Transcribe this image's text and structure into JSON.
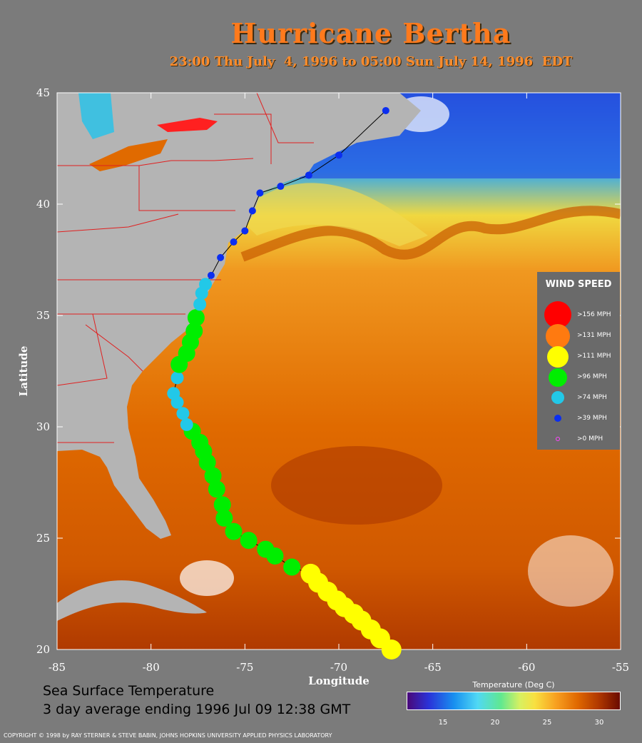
{
  "title": "Hurricane Bertha",
  "subtitle": "23:00 Thu July  4, 1996 to 05:00 Sun July 14, 1996  EDT",
  "map": {
    "lon_range": [
      -85,
      -55
    ],
    "lat_range": [
      20,
      45
    ],
    "lon_ticks": [
      "-85",
      "-80",
      "-75",
      "-70",
      "-65",
      "-60",
      "-55"
    ],
    "lat_ticks": [
      "45",
      "40",
      "35",
      "30",
      "25",
      "20"
    ],
    "xlabel": "Longitude",
    "ylabel": "Latitude",
    "land_color": "#b4b4b4",
    "border_color": "#e02020",
    "ocean_warm": "#e07a10"
  },
  "legend": {
    "title": "WIND SPEED",
    "items": [
      {
        "label": ">156 MPH",
        "color": "#ff0000"
      },
      {
        "label": ">131 MPH",
        "color": "#ff7a10"
      },
      {
        "label": ">111 MPH",
        "color": "#ffff00"
      },
      {
        "label": ">96 MPH",
        "color": "#00ee00"
      },
      {
        "label": ">74 MPH",
        "color": "#22c8e8"
      },
      {
        "label": ">39 MPH",
        "color": "#0b2ef0"
      },
      {
        "label": ">0 MPH",
        "color": "#ff44ff"
      }
    ]
  },
  "track": [
    {
      "lon": -67.2,
      "lat": 20.0,
      "cat": ">111 MPH"
    },
    {
      "lon": -67.8,
      "lat": 20.5,
      "cat": ">111 MPH"
    },
    {
      "lon": -68.3,
      "lat": 20.9,
      "cat": ">111 MPH"
    },
    {
      "lon": -68.8,
      "lat": 21.3,
      "cat": ">111 MPH"
    },
    {
      "lon": -69.2,
      "lat": 21.6,
      "cat": ">111 MPH"
    },
    {
      "lon": -69.7,
      "lat": 21.9,
      "cat": ">111 MPH"
    },
    {
      "lon": -70.1,
      "lat": 22.2,
      "cat": ">111 MPH"
    },
    {
      "lon": -70.6,
      "lat": 22.6,
      "cat": ">111 MPH"
    },
    {
      "lon": -71.1,
      "lat": 23.0,
      "cat": ">111 MPH"
    },
    {
      "lon": -71.5,
      "lat": 23.4,
      "cat": ">111 MPH"
    },
    {
      "lon": -72.5,
      "lat": 23.7,
      "cat": ">96 MPH"
    },
    {
      "lon": -73.4,
      "lat": 24.2,
      "cat": ">96 MPH"
    },
    {
      "lon": -73.9,
      "lat": 24.5,
      "cat": ">96 MPH"
    },
    {
      "lon": -74.8,
      "lat": 24.9,
      "cat": ">96 MPH"
    },
    {
      "lon": -75.6,
      "lat": 25.3,
      "cat": ">96 MPH"
    },
    {
      "lon": -76.1,
      "lat": 25.9,
      "cat": ">96 MPH"
    },
    {
      "lon": -76.2,
      "lat": 26.5,
      "cat": ">96 MPH"
    },
    {
      "lon": -76.5,
      "lat": 27.2,
      "cat": ">96 MPH"
    },
    {
      "lon": -76.7,
      "lat": 27.8,
      "cat": ">96 MPH"
    },
    {
      "lon": -77.0,
      "lat": 28.4,
      "cat": ">96 MPH"
    },
    {
      "lon": -77.2,
      "lat": 28.9,
      "cat": ">96 MPH"
    },
    {
      "lon": -77.4,
      "lat": 29.3,
      "cat": ">96 MPH"
    },
    {
      "lon": -77.8,
      "lat": 29.8,
      "cat": ">96 MPH"
    },
    {
      "lon": -78.1,
      "lat": 30.1,
      "cat": ">74 MPH"
    },
    {
      "lon": -78.3,
      "lat": 30.6,
      "cat": ">74 MPH"
    },
    {
      "lon": -78.6,
      "lat": 31.1,
      "cat": ">74 MPH"
    },
    {
      "lon": -78.8,
      "lat": 31.5,
      "cat": ">74 MPH"
    },
    {
      "lon": -78.6,
      "lat": 32.2,
      "cat": ">74 MPH"
    },
    {
      "lon": -78.5,
      "lat": 32.8,
      "cat": ">96 MPH"
    },
    {
      "lon": -78.1,
      "lat": 33.3,
      "cat": ">96 MPH"
    },
    {
      "lon": -77.9,
      "lat": 33.8,
      "cat": ">96 MPH"
    },
    {
      "lon": -77.7,
      "lat": 34.3,
      "cat": ">96 MPH"
    },
    {
      "lon": -77.6,
      "lat": 34.9,
      "cat": ">96 MPH"
    },
    {
      "lon": -77.4,
      "lat": 35.5,
      "cat": ">74 MPH"
    },
    {
      "lon": -77.3,
      "lat": 36.0,
      "cat": ">74 MPH"
    },
    {
      "lon": -77.1,
      "lat": 36.4,
      "cat": ">74 MPH"
    },
    {
      "lon": -76.8,
      "lat": 36.8,
      "cat": ">39 MPH"
    },
    {
      "lon": -76.3,
      "lat": 37.6,
      "cat": ">39 MPH"
    },
    {
      "lon": -75.6,
      "lat": 38.3,
      "cat": ">39 MPH"
    },
    {
      "lon": -75.0,
      "lat": 38.8,
      "cat": ">39 MPH"
    },
    {
      "lon": -74.6,
      "lat": 39.7,
      "cat": ">39 MPH"
    },
    {
      "lon": -74.2,
      "lat": 40.5,
      "cat": ">39 MPH"
    },
    {
      "lon": -73.1,
      "lat": 40.8,
      "cat": ">39 MPH"
    },
    {
      "lon": -71.6,
      "lat": 41.3,
      "cat": ">39 MPH"
    },
    {
      "lon": -70.0,
      "lat": 42.2,
      "cat": ">39 MPH"
    },
    {
      "lon": -67.5,
      "lat": 44.2,
      "cat": ">39 MPH"
    }
  ],
  "sst_caption": {
    "line1": "Sea Surface Temperature",
    "line2": "3 day average ending 1996 Jul 09 12:38 GMT"
  },
  "colorbar": {
    "title": "Temperature (Deg C)",
    "ticks": [
      "15",
      "20",
      "25",
      "30"
    ],
    "tick_values": [
      15,
      20,
      25,
      30
    ],
    "range": [
      10.5,
      31
    ]
  },
  "copyright": "COPYRIGHT © 1998 by RAY STERNER & STEVE BABIN, JOHNS HOPKINS UNIVERSITY APPLIED PHYSICS LABORATORY"
}
